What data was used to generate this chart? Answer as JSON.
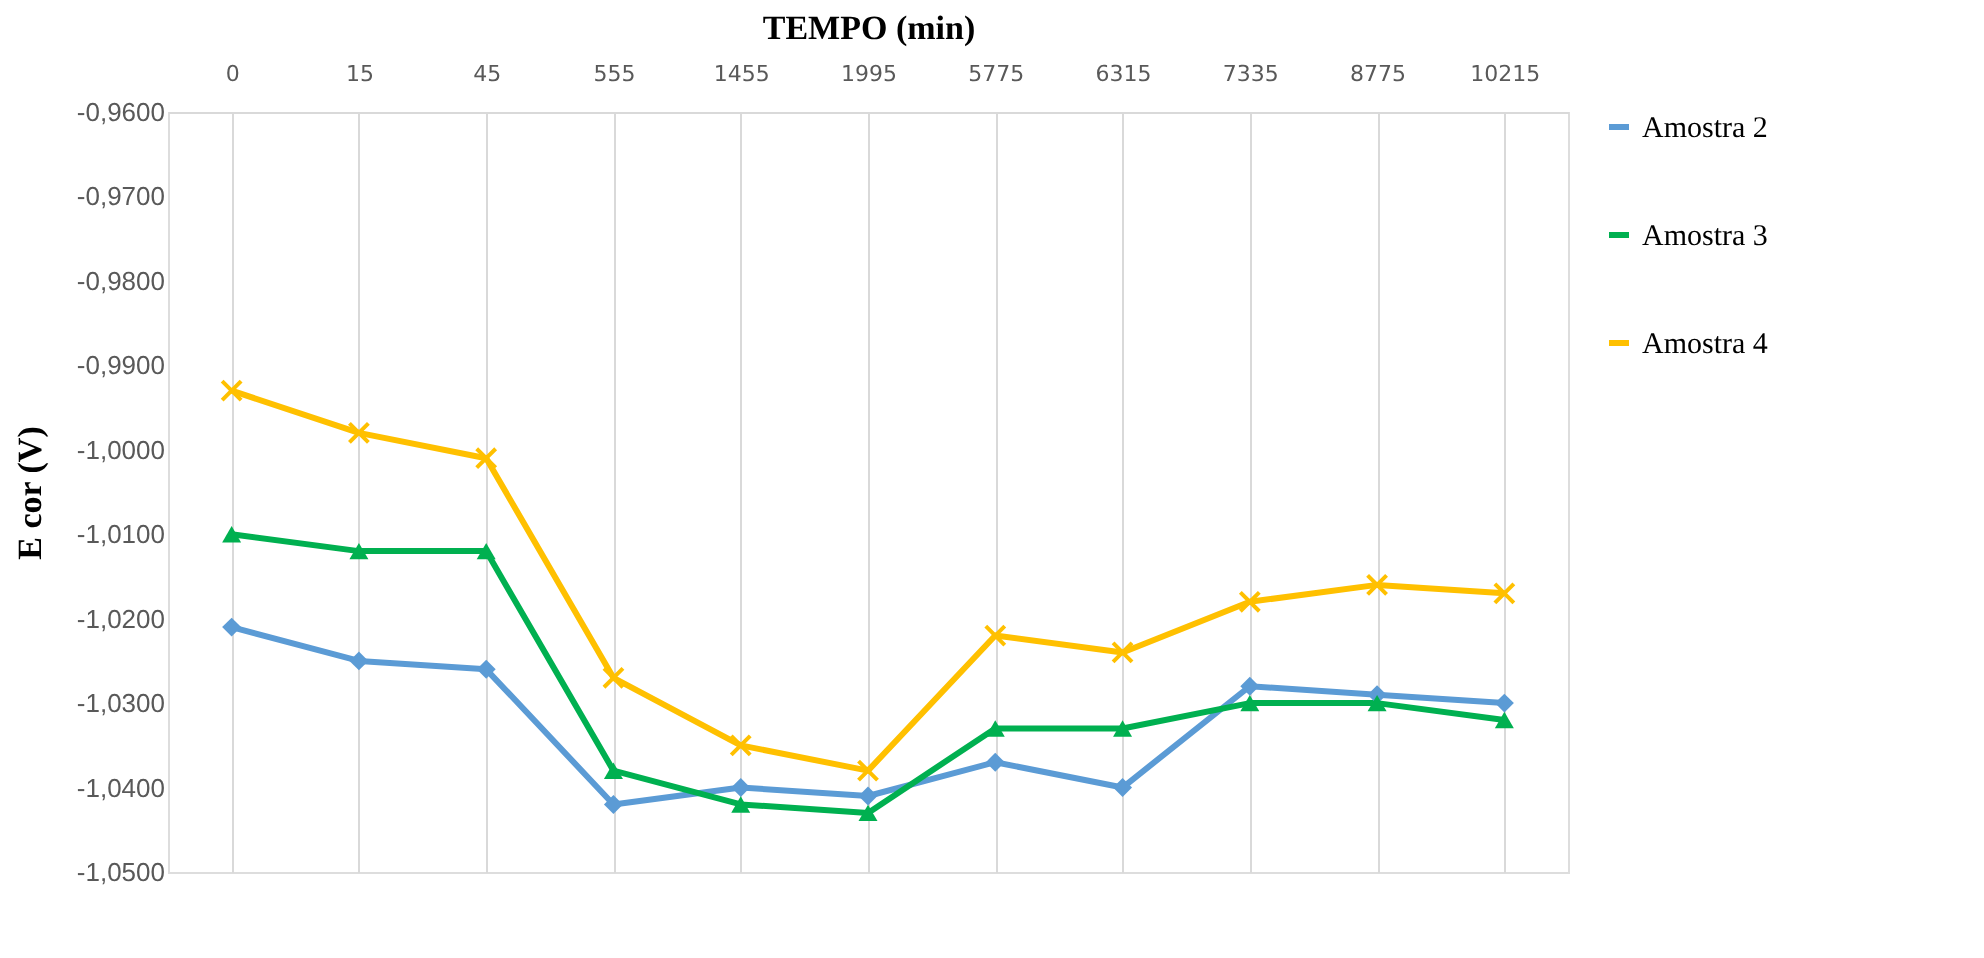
{
  "chart_data": {
    "type": "line",
    "xlabel": "TEMPO (min)",
    "ylabel": "E cor (V)",
    "categories": [
      "0",
      "15",
      "45",
      "555",
      "1455",
      "1995",
      "5775",
      "6315",
      "7335",
      "8775",
      "10215"
    ],
    "series": [
      {
        "name": "Amostra 2",
        "color": "#5b9bd5",
        "marker": "diamond",
        "values": [
          -1.021,
          -1.025,
          -1.026,
          -1.042,
          -1.04,
          -1.041,
          -1.037,
          -1.04,
          -1.028,
          -1.029,
          -1.03
        ]
      },
      {
        "name": "Amostra 3",
        "color": "#00b050",
        "marker": "triangle",
        "values": [
          -1.01,
          -1.012,
          -1.012,
          -1.038,
          -1.042,
          -1.043,
          -1.033,
          -1.033,
          -1.03,
          -1.03,
          -1.032
        ]
      },
      {
        "name": "Amostra 4",
        "color": "#ffc000",
        "marker": "cross",
        "values": [
          -0.993,
          -0.998,
          -1.001,
          -1.027,
          -1.035,
          -1.038,
          -1.022,
          -1.024,
          -1.018,
          -1.016,
          -1.017
        ]
      }
    ],
    "ylim": [
      -1.05,
      -0.96
    ],
    "yticks": [
      {
        "value": -1.05,
        "label": "-1,0500"
      },
      {
        "value": -1.04,
        "label": "-1,0400"
      },
      {
        "value": -1.03,
        "label": "-1,0300"
      },
      {
        "value": -1.02,
        "label": "-1,0200"
      },
      {
        "value": -1.01,
        "label": "-1,0100"
      },
      {
        "value": -1.0,
        "label": "-1,0000"
      },
      {
        "value": -0.99,
        "label": "-0,9900"
      },
      {
        "value": -0.98,
        "label": "-0,9800"
      },
      {
        "value": -0.97,
        "label": "-0,9700"
      },
      {
        "value": -0.96,
        "label": "-0,9600"
      }
    ],
    "grid": "x",
    "legend": "right"
  }
}
